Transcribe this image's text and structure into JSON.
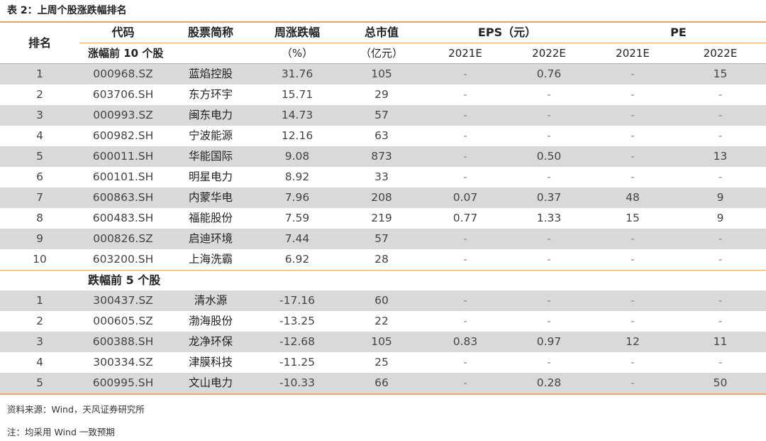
{
  "title": "表 2：上周个股涨跌幅排名",
  "header": {
    "rank": "排名",
    "code": "代码",
    "name": "股票简称",
    "change": "周涨跌幅",
    "mcap": "总市值",
    "eps": "EPS（元）",
    "pe": "PE",
    "change_unit": "（%）",
    "mcap_unit": "（亿元）",
    "year1": "2021E",
    "year2": "2022E"
  },
  "sections": [
    {
      "label": "涨幅前 10 个股",
      "rows": [
        {
          "rank": "1",
          "code": "000968.SZ",
          "name": "蓝焰控股",
          "change": "31.76",
          "mcap": "105",
          "eps21": "-",
          "eps22": "0.76",
          "pe21": "-",
          "pe22": "15"
        },
        {
          "rank": "2",
          "code": "603706.SH",
          "name": "东方环宇",
          "change": "15.71",
          "mcap": "29",
          "eps21": "-",
          "eps22": "-",
          "pe21": "-",
          "pe22": "-"
        },
        {
          "rank": "3",
          "code": "000993.SZ",
          "name": "闽东电力",
          "change": "14.73",
          "mcap": "57",
          "eps21": "-",
          "eps22": "-",
          "pe21": "-",
          "pe22": "-"
        },
        {
          "rank": "4",
          "code": "600982.SH",
          "name": "宁波能源",
          "change": "12.16",
          "mcap": "63",
          "eps21": "-",
          "eps22": "-",
          "pe21": "-",
          "pe22": "-"
        },
        {
          "rank": "5",
          "code": "600011.SH",
          "name": "华能国际",
          "change": "9.08",
          "mcap": "873",
          "eps21": "-",
          "eps22": "0.50",
          "pe21": "-",
          "pe22": "13"
        },
        {
          "rank": "6",
          "code": "600101.SH",
          "name": "明星电力",
          "change": "8.92",
          "mcap": "33",
          "eps21": "-",
          "eps22": "-",
          "pe21": "-",
          "pe22": "-"
        },
        {
          "rank": "7",
          "code": "600863.SH",
          "name": "内蒙华电",
          "change": "7.96",
          "mcap": "208",
          "eps21": "0.07",
          "eps22": "0.37",
          "pe21": "48",
          "pe22": "9"
        },
        {
          "rank": "8",
          "code": "600483.SH",
          "name": "福能股份",
          "change": "7.59",
          "mcap": "219",
          "eps21": "0.77",
          "eps22": "1.33",
          "pe21": "15",
          "pe22": "9"
        },
        {
          "rank": "9",
          "code": "000826.SZ",
          "name": "启迪环境",
          "change": "7.44",
          "mcap": "57",
          "eps21": "-",
          "eps22": "-",
          "pe21": "-",
          "pe22": "-"
        },
        {
          "rank": "10",
          "code": "603200.SH",
          "name": "上海洗霸",
          "change": "6.92",
          "mcap": "28",
          "eps21": "-",
          "eps22": "-",
          "pe21": "-",
          "pe22": "-"
        }
      ]
    },
    {
      "label": "跌幅前 5 个股",
      "rows": [
        {
          "rank": "1",
          "code": "300437.SZ",
          "name": "清水源",
          "change": "-17.16",
          "mcap": "60",
          "eps21": "-",
          "eps22": "-",
          "pe21": "-",
          "pe22": "-"
        },
        {
          "rank": "2",
          "code": "000605.SZ",
          "name": "渤海股份",
          "change": "-13.25",
          "mcap": "22",
          "eps21": "-",
          "eps22": "-",
          "pe21": "-",
          "pe22": "-"
        },
        {
          "rank": "3",
          "code": "600388.SH",
          "name": "龙净环保",
          "change": "-12.68",
          "mcap": "105",
          "eps21": "0.83",
          "eps22": "0.97",
          "pe21": "12",
          "pe22": "11"
        },
        {
          "rank": "4",
          "code": "300334.SZ",
          "name": "津膜科技",
          "change": "-11.25",
          "mcap": "25",
          "eps21": "-",
          "eps22": "-",
          "pe21": "-",
          "pe22": "-"
        },
        {
          "rank": "5",
          "code": "600995.SH",
          "name": "文山电力",
          "change": "-10.33",
          "mcap": "66",
          "eps21": "-",
          "eps22": "0.28",
          "pe21": "-",
          "pe22": "50"
        }
      ]
    }
  ],
  "source": "资料来源：Wind，天风证券研究所",
  "note": "注：均采用 Wind 一致预期"
}
